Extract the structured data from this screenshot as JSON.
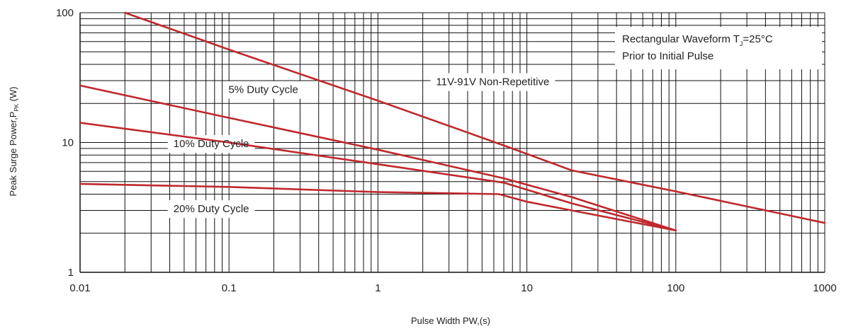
{
  "chart_data": {
    "type": "line",
    "title": "",
    "xlabel": "Pulse Width PW,(s)",
    "ylabel_main": "Peak Surge Power,P",
    "ylabel_sub": "PK",
    "ylabel_unit": " (W)",
    "xscale": "log",
    "yscale": "log",
    "xlim": [
      0.01,
      1000
    ],
    "ylim": [
      1,
      100
    ],
    "grid": true,
    "x_ticks": [
      {
        "value": 0.01,
        "label": "0.01"
      },
      {
        "value": 0.1,
        "label": "0.1"
      },
      {
        "value": 1,
        "label": "1"
      },
      {
        "value": 10,
        "label": "10"
      },
      {
        "value": 100,
        "label": "100"
      },
      {
        "value": 1000,
        "label": "1000"
      }
    ],
    "y_ticks": [
      {
        "value": 1,
        "label": "1"
      },
      {
        "value": 10,
        "label": "10"
      },
      {
        "value": 100,
        "label": "100"
      }
    ],
    "series": [
      {
        "name": "11V-91V Non-Repetitive",
        "color": "#c0282d",
        "points": [
          [
            0.02,
            100
          ],
          [
            0.1,
            52
          ],
          [
            1,
            21
          ],
          [
            7,
            9.5
          ],
          [
            20,
            6.1
          ],
          [
            100,
            4.2
          ],
          [
            1000,
            2.4
          ]
        ]
      },
      {
        "name": "5% Duty Cycle",
        "color": "#c0282d",
        "points": [
          [
            0.01,
            27.5
          ],
          [
            0.1,
            15.5
          ],
          [
            1,
            8.8
          ],
          [
            7,
            5.3
          ],
          [
            20,
            3.8
          ],
          [
            100,
            2.1
          ]
        ]
      },
      {
        "name": "10% Duty Cycle",
        "color": "#c0282d",
        "points": [
          [
            0.01,
            14.2
          ],
          [
            0.1,
            10
          ],
          [
            1,
            6.8
          ],
          [
            7,
            4.9
          ],
          [
            20,
            3.4
          ],
          [
            100,
            2.1
          ]
        ]
      },
      {
        "name": "20% Duty Cycle",
        "color": "#c0282d",
        "points": [
          [
            0.01,
            4.8
          ],
          [
            0.1,
            4.55
          ],
          [
            1,
            4.15
          ],
          [
            6.5,
            4.0
          ],
          [
            10,
            3.5
          ],
          [
            100,
            2.1
          ]
        ]
      }
    ],
    "annotations": [
      {
        "key": "label_nonrep",
        "text": "11V-91V Non-Repetitive",
        "at": [
          5.9,
          27.6
        ]
      },
      {
        "key": "label_5pct",
        "text": "5% Duty Cycle",
        "at": [
          0.17,
          24
        ]
      },
      {
        "key": "label_10pct",
        "text": "10% Duty Cycle",
        "at": [
          0.076,
          9.2
        ]
      },
      {
        "key": "label_20pct",
        "text": "20% Duty Cycle",
        "at": [
          0.076,
          2.9
        ]
      }
    ],
    "legend_box": {
      "line1_main": "Rectangular Waveform T",
      "line1_sub": "J",
      "line1_rest": "=25°C",
      "line2": "Prior to Initial Pulse",
      "placement": "top-right"
    }
  }
}
